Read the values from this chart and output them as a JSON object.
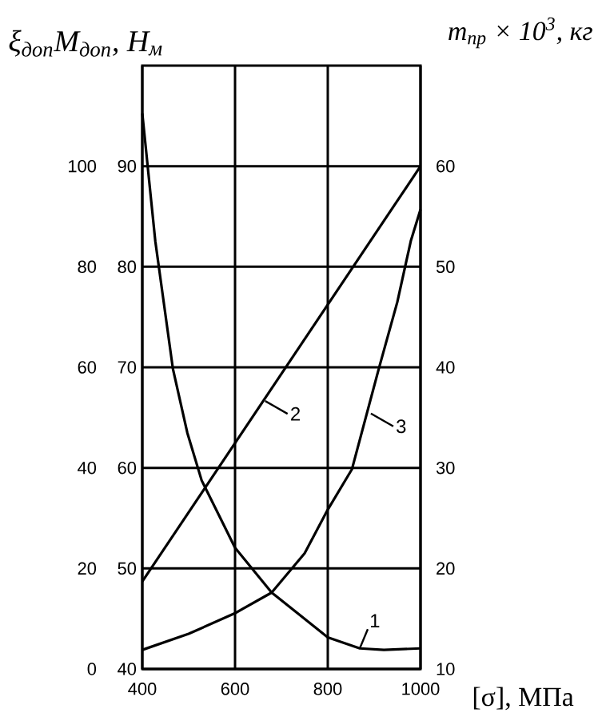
{
  "chart_data": {
    "type": "line",
    "xlabel": "[σ], МПа",
    "ylabel": "ξ$_{доп}$M$_{доп}$, H$_{м}$",
    "y2label": "m$_{пр}$ × 10$^{3}$, кг",
    "xlim": [
      400,
      1000
    ],
    "xticks": [
      400,
      600,
      800,
      1000
    ],
    "ylim": [
      0,
      120
    ],
    "yticks": [
      0,
      20,
      40,
      60,
      80,
      100
    ],
    "y3lim": [
      40,
      100
    ],
    "y3ticks": [
      40,
      50,
      60,
      70,
      80,
      90
    ],
    "y2lim": [
      10,
      70
    ],
    "y2ticks": [
      10,
      20,
      30,
      40,
      50,
      60
    ],
    "grid": true,
    "marker": "none",
    "line_style": "solid",
    "series": [
      {
        "color": "#000000",
        "x": [
          400,
          428,
          466,
          497,
          528,
          600,
          679,
          800,
          869,
          921,
          1000
        ],
        "values": [
          110.5,
          85.1,
          59.7,
          47,
          37.5,
          24.1,
          15.2,
          6.3,
          4.1,
          3.8,
          4.1
        ]
      },
      {
        "color": "#000000",
        "axis": "y2",
        "x": [
          400,
          1000
        ],
        "values": [
          18.7,
          60
        ]
      },
      {
        "color": "#000000",
        "x": [
          400,
          500,
          600,
          679,
          750,
          800,
          852,
          910,
          950,
          979,
          1000
        ],
        "values": [
          3.8,
          7,
          11.1,
          15.2,
          23,
          31.7,
          39.7,
          59.7,
          73,
          85.1,
          91.4
        ]
      }
    ],
    "annotations": [
      {
        "text": "1",
        "x": 869,
        "y": 4.1
      },
      {
        "text": "2",
        "x": 665,
        "y": 53.3
      },
      {
        "text": "3",
        "x": 893,
        "y": 50.8
      }
    ]
  }
}
